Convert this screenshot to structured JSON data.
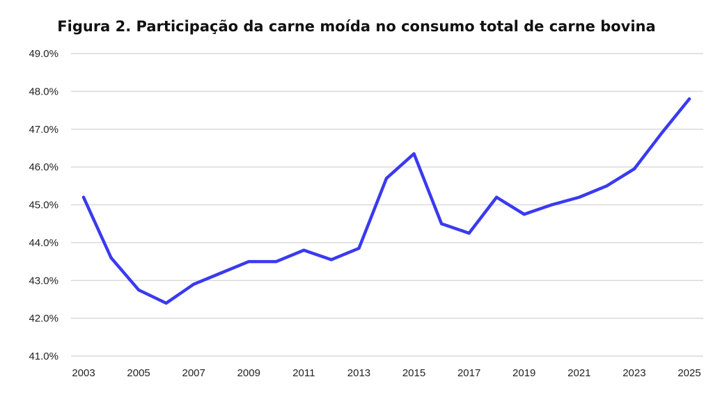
{
  "chart_data": {
    "type": "line",
    "title": "Figura 2. Participação da carne moída no consumo total de carne bovina",
    "xlabel": "",
    "ylabel": "",
    "x": [
      2003,
      2004,
      2005,
      2006,
      2007,
      2008,
      2009,
      2010,
      2011,
      2012,
      2013,
      2014,
      2015,
      2016,
      2017,
      2018,
      2019,
      2020,
      2021,
      2022,
      2023,
      2024,
      2025
    ],
    "x_tick_labels": [
      "2003",
      "2005",
      "2007",
      "2009",
      "2011",
      "2013",
      "2015",
      "2017",
      "2019",
      "2021",
      "2023",
      "2025"
    ],
    "series": [
      {
        "name": "Participação da carne moída",
        "color": "#3a3af0",
        "values": [
          45.2,
          43.6,
          42.75,
          42.4,
          42.9,
          43.2,
          43.5,
          43.5,
          43.8,
          43.55,
          43.85,
          45.7,
          46.35,
          44.5,
          44.25,
          45.2,
          44.75,
          45.0,
          45.2,
          45.5,
          45.95,
          46.9,
          47.8
        ]
      }
    ],
    "ylim": [
      41.0,
      49.0
    ],
    "y_ticks": [
      41.0,
      42.0,
      43.0,
      44.0,
      45.0,
      46.0,
      47.0,
      48.0,
      49.0
    ],
    "y_tick_labels": [
      "41.0%",
      "42.0%",
      "43.0%",
      "44.0%",
      "45.0%",
      "46.0%",
      "47.0%",
      "48.0%",
      "49.0%"
    ],
    "xlim": [
      2003,
      2025
    ],
    "grid": "horizontal",
    "legend": "none",
    "gridline_color": "#d9d9d9"
  }
}
